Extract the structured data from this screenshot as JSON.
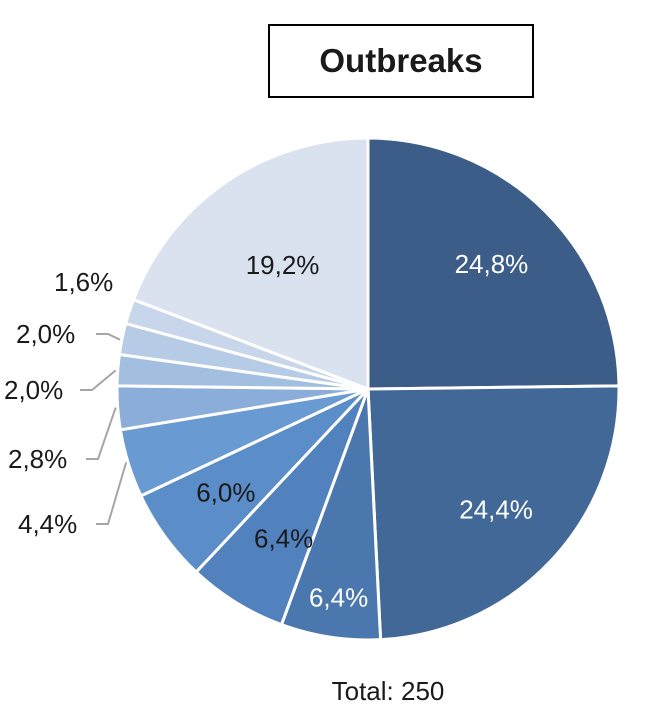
{
  "chart_data": {
    "type": "pie",
    "title": "Outbreaks",
    "total_label": "Total: 250",
    "slices": [
      {
        "label": "24,8%",
        "value": 24.8,
        "color": "#3b5d88",
        "label_color": "#ffffff"
      },
      {
        "label": "24,4%",
        "value": 24.4,
        "color": "#416896",
        "label_color": "#ffffff"
      },
      {
        "label": "6,4%",
        "value": 6.4,
        "color": "#4a77ad",
        "label_color": "#ffffff"
      },
      {
        "label": "6,4%",
        "value": 6.4,
        "color": "#5282bd",
        "label_color": "#1a1a1a"
      },
      {
        "label": "6,0%",
        "value": 6.0,
        "color": "#5b8dc8",
        "label_color": "#1a1a1a"
      },
      {
        "label": "4,4%",
        "value": 4.4,
        "color": "#6a9ad2",
        "label_color": "#1a1a1a"
      },
      {
        "label": "2,8%",
        "value": 2.8,
        "color": "#8aaed9",
        "label_color": "#1a1a1a"
      },
      {
        "label": "2,0%",
        "value": 2.0,
        "color": "#a3bfe0",
        "label_color": "#1a1a1a"
      },
      {
        "label": "2,0%",
        "value": 2.0,
        "color": "#b6cbe6",
        "label_color": "#1a1a1a"
      },
      {
        "label": "1,6%",
        "value": 1.6,
        "color": "#c8d6ec",
        "label_color": "#1a1a1a"
      },
      {
        "label": "19,2%",
        "value": 19.2,
        "color": "#dbe2ef",
        "label_color": "#1a1a1a"
      }
    ]
  }
}
